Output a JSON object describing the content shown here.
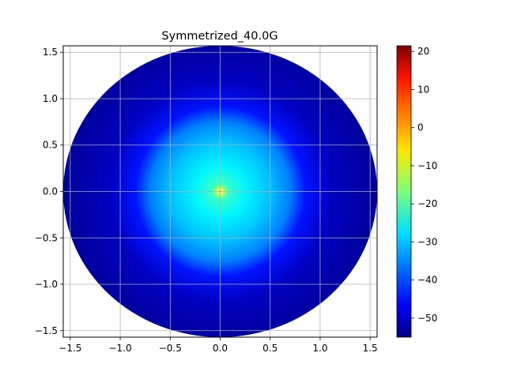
{
  "chart_data": {
    "type": "heatmap",
    "title": "Symmetrized_40.0G",
    "xlabel": "",
    "ylabel": "",
    "xlim": [
      -1.57,
      1.57
    ],
    "ylim": [
      -1.57,
      1.57
    ],
    "xticks": [
      -1.5,
      -1.0,
      -0.5,
      0.0,
      0.5,
      1.0,
      1.5
    ],
    "yticks": [
      -1.5,
      -1.0,
      -0.5,
      0.0,
      0.5,
      1.0,
      1.5
    ],
    "xtick_labels": [
      "−1.5",
      "−1.0",
      "−0.5",
      "0.0",
      "0.5",
      "1.0",
      "1.5"
    ],
    "ytick_labels": [
      "−1.5",
      "−1.0",
      "−0.5",
      "0.0",
      "0.5",
      "1.0",
      "1.5"
    ],
    "grid": true,
    "colormap": "jet",
    "disk_radius": 1.57,
    "radial_profile": [
      {
        "r": 0.0,
        "value": 21
      },
      {
        "r": 0.01,
        "value": -5
      },
      {
        "r": 0.03,
        "value": -12
      },
      {
        "r": 0.08,
        "value": -22
      },
      {
        "r": 0.25,
        "value": -27
      },
      {
        "r": 0.5,
        "value": -31
      },
      {
        "r": 0.7,
        "value": -36
      },
      {
        "r": 0.85,
        "value": -44
      },
      {
        "r": 1.1,
        "value": -50
      },
      {
        "r": 1.57,
        "value": -53
      }
    ],
    "colorbar": {
      "min": -55,
      "max": 21.5,
      "ticks": [
        -50,
        -40,
        -30,
        -20,
        -10,
        0,
        10,
        20
      ],
      "tick_labels": [
        "−50",
        "−40",
        "−30",
        "−20",
        "−10",
        "0",
        "10",
        "20"
      ]
    }
  }
}
